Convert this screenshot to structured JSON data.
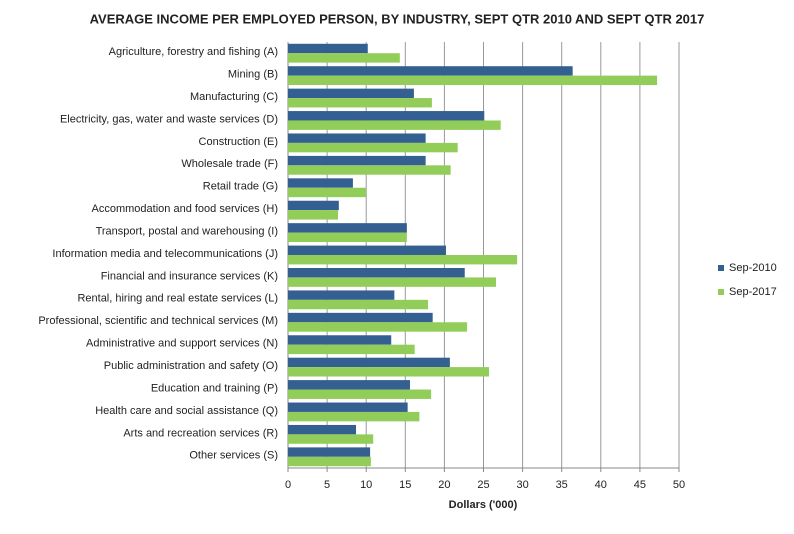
{
  "chart_data": {
    "type": "hbar",
    "title": "AVERAGE INCOME PER EMPLOYED PERSON, BY INDUSTRY, SEPT QTR 2010 AND SEPT QTR 2017",
    "x_label": "Dollars ('000)",
    "categories": [
      "Agriculture, forestry and fishing (A)",
      "Mining (B)",
      "Manufacturing (C)",
      "Electricity, gas, water and waste services (D)",
      "Construction (E)",
      "Wholesale trade (F)",
      "Retail trade (G)",
      "Accommodation and food services (H)",
      "Transport, postal and warehousing (I)",
      "Information media and telecommunications (J)",
      "Financial and insurance services (K)",
      "Rental, hiring and real estate services (L)",
      "Professional, scientific and technical services (M)",
      "Administrative and support services (N)",
      "Public administration and safety (O)",
      "Education and training (P)",
      "Health care and social assistance (Q)",
      "Arts and recreation services (R)",
      "Other services (S)"
    ],
    "series": [
      {
        "name": "Sep-2010",
        "color": "#335f91",
        "values": [
          10.2,
          36.4,
          16.1,
          25.1,
          17.6,
          17.6,
          8.3,
          6.5,
          15.2,
          20.2,
          22.6,
          13.6,
          18.5,
          13.2,
          20.7,
          15.6,
          15.3,
          8.7,
          10.5
        ]
      },
      {
        "name": "Sep-2017",
        "color": "#92cd5a",
        "values": [
          14.3,
          47.2,
          18.4,
          27.2,
          21.7,
          20.8,
          10.0,
          6.4,
          15.2,
          29.3,
          26.6,
          17.9,
          22.9,
          16.2,
          25.7,
          18.3,
          16.8,
          10.9,
          10.6
        ]
      }
    ],
    "xlim": [
      0,
      50
    ],
    "xticks": [
      0,
      5,
      10,
      15,
      20,
      25,
      30,
      35,
      40,
      45,
      50
    ],
    "grid": true,
    "legend": "right"
  }
}
